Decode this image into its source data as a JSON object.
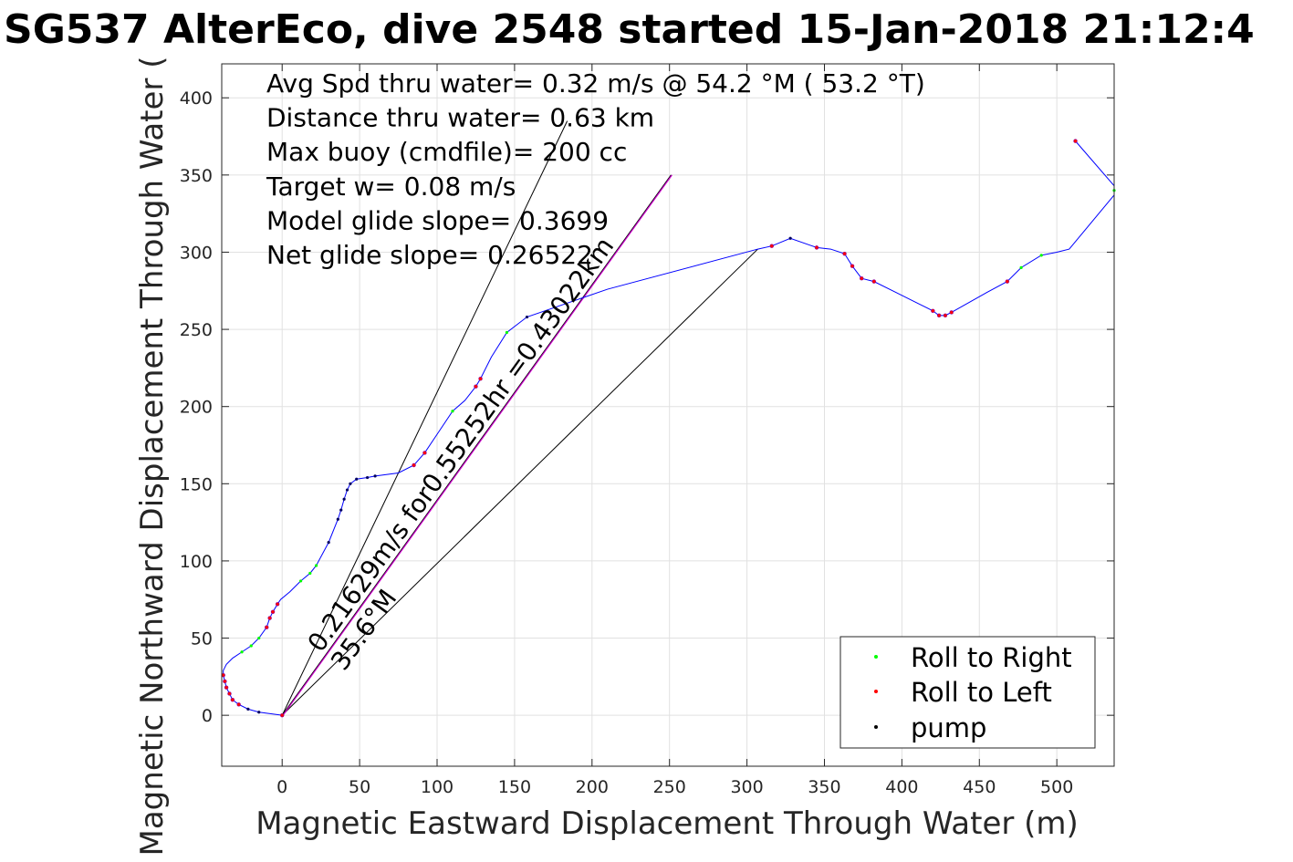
{
  "chart_data": {
    "type": "line",
    "title": "SG537 AlterEco, dive 2548 started 15-Jan-2018 21:12:4",
    "xlabel": "Magnetic Eastward Displacement Through Water (m)",
    "ylabel": "Magnetic Northward Displacement Through Water (",
    "xlim": [
      -39,
      537
    ],
    "ylim": [
      -33,
      422
    ],
    "xticks": [
      0,
      50,
      100,
      150,
      200,
      250,
      300,
      350,
      400,
      450,
      500
    ],
    "yticks": [
      0,
      50,
      100,
      150,
      200,
      250,
      300,
      350,
      400
    ],
    "grid": true,
    "annotations": [
      "Avg Spd thru water=  0.32 m/s @  54.2 °M ( 53.2 °T)",
      "Distance thru water=  0.63 km",
      "Max buoy (cmdfile)= 200 cc",
      "Target w= 0.08 m/s",
      "Model glide slope= 0.3699",
      "Net glide slope= 0.26522"
    ],
    "diagonal_labels": [
      {
        "text": "0.21629m/s for0.55252hr =0.43022km",
        "x": 25,
        "y": 40
      },
      {
        "text": "35.6°M",
        "x": 40,
        "y": 28
      }
    ],
    "legend": {
      "position": "bottom-right",
      "entries": [
        {
          "label": "Roll to Right",
          "color": "#00ff00"
        },
        {
          "label": "Roll to Left",
          "color": "#ff0000"
        },
        {
          "label": "pump",
          "color": "#000000"
        }
      ]
    },
    "black_lines": [
      [
        [
          0,
          0
        ],
        [
          184,
          385
        ]
      ],
      [
        [
          0,
          0
        ],
        [
          307,
          302
        ]
      ],
      [
        [
          0,
          0
        ],
        [
          251,
          350
        ]
      ]
    ],
    "magenta_line": [
      [
        0,
        0
      ],
      [
        251,
        350
      ]
    ],
    "trajectory": {
      "color": "#0000ff",
      "points": [
        [
          0,
          0
        ],
        [
          -15,
          2
        ],
        [
          -22,
          4
        ],
        [
          -28,
          7
        ],
        [
          -32,
          10
        ],
        [
          -34,
          14
        ],
        [
          -36,
          18
        ],
        [
          -37,
          22
        ],
        [
          -38,
          26
        ],
        [
          -38,
          29
        ],
        [
          -36,
          33
        ],
        [
          -32,
          37
        ],
        [
          -26,
          41
        ],
        [
          -20,
          45
        ],
        [
          -15,
          50
        ],
        [
          -10,
          57
        ],
        [
          -8,
          63
        ],
        [
          -6,
          67
        ],
        [
          -3,
          72
        ],
        [
          -1,
          75
        ],
        [
          5,
          80
        ],
        [
          12,
          87
        ],
        [
          18,
          92
        ],
        [
          22,
          97
        ],
        [
          30,
          112
        ],
        [
          36,
          127
        ],
        [
          38,
          133
        ],
        [
          40,
          140
        ],
        [
          42,
          146
        ],
        [
          44,
          150
        ],
        [
          48,
          153
        ],
        [
          55,
          154
        ],
        [
          60,
          155
        ],
        [
          75,
          157
        ],
        [
          85,
          162
        ],
        [
          92,
          170
        ],
        [
          100,
          182
        ],
        [
          110,
          197
        ],
        [
          118,
          204
        ],
        [
          125,
          213
        ],
        [
          128,
          218
        ],
        [
          135,
          232
        ],
        [
          145,
          248
        ],
        [
          158,
          258
        ],
        [
          210,
          276
        ],
        [
          307,
          302
        ],
        [
          316,
          304
        ],
        [
          328,
          309
        ],
        [
          345,
          303
        ],
        [
          354,
          302
        ],
        [
          363,
          299
        ],
        [
          368,
          291
        ],
        [
          374,
          283
        ],
        [
          382,
          281
        ],
        [
          396,
          274
        ],
        [
          410,
          267
        ],
        [
          420,
          262
        ],
        [
          424,
          259
        ],
        [
          428,
          259
        ],
        [
          432,
          261
        ],
        [
          455,
          274
        ],
        [
          468,
          281
        ],
        [
          477,
          290
        ],
        [
          490,
          298
        ],
        [
          500,
          300
        ],
        [
          508,
          302
        ],
        [
          537,
          337
        ],
        [
          537,
          343
        ],
        [
          512,
          372
        ]
      ]
    },
    "roll_right_points": [
      [
        -15,
        50
      ],
      [
        -20,
        45
      ],
      [
        -26,
        41
      ],
      [
        12,
        87
      ],
      [
        18,
        92
      ],
      [
        22,
        97
      ],
      [
        110,
        197
      ],
      [
        145,
        248
      ],
      [
        537,
        340
      ],
      [
        477,
        290
      ],
      [
        490,
        298
      ]
    ],
    "roll_left_points": [
      [
        0,
        0
      ],
      [
        -28,
        7
      ],
      [
        -32,
        10
      ],
      [
        -34,
        14
      ],
      [
        -36,
        18
      ],
      [
        -37,
        22
      ],
      [
        -38,
        26
      ],
      [
        -10,
        57
      ],
      [
        -8,
        63
      ],
      [
        -6,
        67
      ],
      [
        -3,
        72
      ],
      [
        85,
        162
      ],
      [
        92,
        170
      ],
      [
        125,
        213
      ],
      [
        128,
        218
      ],
      [
        316,
        304
      ],
      [
        345,
        303
      ],
      [
        363,
        299
      ],
      [
        368,
        291
      ],
      [
        374,
        283
      ],
      [
        382,
        281
      ],
      [
        420,
        262
      ],
      [
        424,
        259
      ],
      [
        428,
        259
      ],
      [
        432,
        261
      ],
      [
        468,
        281
      ],
      [
        512,
        372
      ]
    ],
    "pump_points": [
      [
        -15,
        2
      ],
      [
        -22,
        4
      ],
      [
        30,
        112
      ],
      [
        36,
        127
      ],
      [
        38,
        133
      ],
      [
        40,
        140
      ],
      [
        42,
        146
      ],
      [
        44,
        150
      ],
      [
        48,
        153
      ],
      [
        55,
        154
      ],
      [
        60,
        155
      ],
      [
        158,
        258
      ],
      [
        328,
        309
      ]
    ]
  }
}
